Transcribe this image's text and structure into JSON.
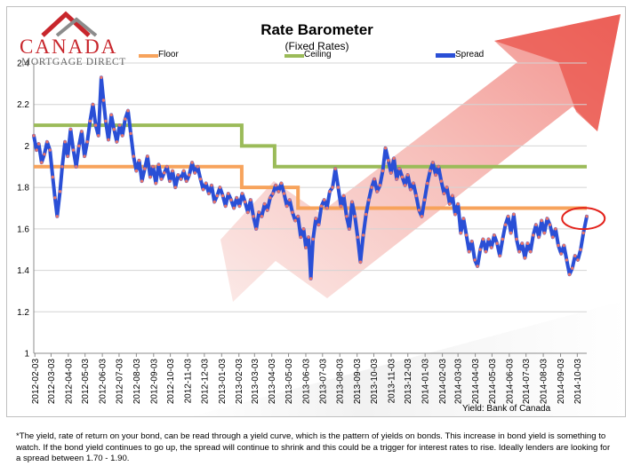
{
  "logo": {
    "brand": "CANADA",
    "subtitle": "MORTGAGE DIRECT",
    "colors": {
      "red": "#c8262c",
      "gray": "#666666"
    }
  },
  "chart_data": {
    "type": "line",
    "title": "Rate Barometer",
    "subtitle": "(Fixed Rates)",
    "ylim": [
      1,
      2.4
    ],
    "y_ticks": [
      "1",
      "1.2",
      "1.4",
      "1.6",
      "1.8",
      "2",
      "2.2",
      "2.4"
    ],
    "x_ticks": [
      "2012-02-03",
      "2012-03-03",
      "2012-04-03",
      "2012-05-03",
      "2012-06-03",
      "2012-07-03",
      "2012-08-03",
      "2012-09-03",
      "2012-10-03",
      "2012-11-03",
      "2012-12-03",
      "2013-01-03",
      "2013-02-03",
      "2013-03-03",
      "2013-04-03",
      "2013-05-03",
      "2013-06-03",
      "2013-07-03",
      "2013-08-03",
      "2013-09-03",
      "2013-10-03",
      "2013-11-03",
      "2013-12-03",
      "2014-01-03",
      "2014-02-03",
      "2014-03-03",
      "2014-04-03",
      "2014-05-03",
      "2014-06-03",
      "2014-07-03",
      "2014-08-03",
      "2014-09-03",
      "2014-10-03"
    ],
    "x_range": [
      "2012-02-01",
      "2014-10-20"
    ],
    "legend_position": "top",
    "grid": "horizontal",
    "series": [
      {
        "name": "Floor",
        "color": "#f7a35c",
        "step": true,
        "points": [
          [
            "2012-02-01",
            1.9
          ],
          [
            "2013-02-08",
            1.9
          ],
          [
            "2013-02-08",
            1.8
          ],
          [
            "2013-05-20",
            1.8
          ],
          [
            "2013-05-20",
            1.7
          ],
          [
            "2014-10-20",
            1.7
          ]
        ]
      },
      {
        "name": "Ceiling",
        "color": "#9bbb59",
        "step": true,
        "points": [
          [
            "2012-02-01",
            2.1
          ],
          [
            "2013-02-08",
            2.1
          ],
          [
            "2013-02-08",
            2.0
          ],
          [
            "2013-04-08",
            2.0
          ],
          [
            "2013-04-08",
            1.9
          ],
          [
            "2014-10-20",
            1.9
          ]
        ]
      },
      {
        "name": "Spread",
        "color": "#2a4fd6",
        "marker_color": "#e8756b",
        "points": [
          [
            "2012-02-01",
            2.05
          ],
          [
            "2012-02-06",
            1.98
          ],
          [
            "2012-02-10",
            2.01
          ],
          [
            "2012-02-15",
            1.92
          ],
          [
            "2012-02-20",
            1.96
          ],
          [
            "2012-02-25",
            2.02
          ],
          [
            "2012-03-01",
            1.98
          ],
          [
            "2012-03-06",
            1.85
          ],
          [
            "2012-03-10",
            1.75
          ],
          [
            "2012-03-14",
            1.66
          ],
          [
            "2012-03-19",
            1.78
          ],
          [
            "2012-03-23",
            1.9
          ],
          [
            "2012-03-28",
            2.02
          ],
          [
            "2012-04-02",
            1.95
          ],
          [
            "2012-04-07",
            2.08
          ],
          [
            "2012-04-12",
            1.98
          ],
          [
            "2012-04-17",
            1.9
          ],
          [
            "2012-04-22",
            2.0
          ],
          [
            "2012-04-27",
            2.07
          ],
          [
            "2012-05-02",
            1.95
          ],
          [
            "2012-05-07",
            2.02
          ],
          [
            "2012-05-12",
            2.12
          ],
          [
            "2012-05-17",
            2.2
          ],
          [
            "2012-05-22",
            2.1
          ],
          [
            "2012-05-27",
            2.05
          ],
          [
            "2012-06-01",
            2.33
          ],
          [
            "2012-06-05",
            2.22
          ],
          [
            "2012-06-09",
            2.12
          ],
          [
            "2012-06-14",
            2.03
          ],
          [
            "2012-06-19",
            2.15
          ],
          [
            "2012-06-24",
            2.08
          ],
          [
            "2012-06-29",
            2.02
          ],
          [
            "2012-07-04",
            2.1
          ],
          [
            "2012-07-09",
            2.05
          ],
          [
            "2012-07-14",
            2.13
          ],
          [
            "2012-07-19",
            2.17
          ],
          [
            "2012-07-24",
            2.06
          ],
          [
            "2012-07-29",
            1.95
          ],
          [
            "2012-08-03",
            1.88
          ],
          [
            "2012-08-08",
            1.93
          ],
          [
            "2012-08-13",
            1.83
          ],
          [
            "2012-08-18",
            1.89
          ],
          [
            "2012-08-23",
            1.95
          ],
          [
            "2012-08-28",
            1.85
          ],
          [
            "2012-09-02",
            1.9
          ],
          [
            "2012-09-07",
            1.82
          ],
          [
            "2012-09-12",
            1.91
          ],
          [
            "2012-09-17",
            1.84
          ],
          [
            "2012-09-22",
            1.87
          ],
          [
            "2012-09-27",
            1.9
          ],
          [
            "2012-10-02",
            1.83
          ],
          [
            "2012-10-07",
            1.88
          ],
          [
            "2012-10-12",
            1.8
          ],
          [
            "2012-10-17",
            1.86
          ],
          [
            "2012-10-22",
            1.84
          ],
          [
            "2012-10-27",
            1.88
          ],
          [
            "2012-11-01",
            1.83
          ],
          [
            "2012-11-06",
            1.86
          ],
          [
            "2012-11-11",
            1.92
          ],
          [
            "2012-11-16",
            1.87
          ],
          [
            "2012-11-21",
            1.9
          ],
          [
            "2012-11-26",
            1.84
          ],
          [
            "2012-12-01",
            1.79
          ],
          [
            "2012-12-06",
            1.82
          ],
          [
            "2012-12-11",
            1.77
          ],
          [
            "2012-12-16",
            1.81
          ],
          [
            "2012-12-21",
            1.73
          ],
          [
            "2012-12-26",
            1.76
          ],
          [
            "2012-12-31",
            1.8
          ],
          [
            "2013-01-05",
            1.76
          ],
          [
            "2013-01-10",
            1.71
          ],
          [
            "2013-01-15",
            1.77
          ],
          [
            "2013-01-20",
            1.74
          ],
          [
            "2013-01-25",
            1.7
          ],
          [
            "2013-01-30",
            1.75
          ],
          [
            "2013-02-04",
            1.71
          ],
          [
            "2013-02-09",
            1.77
          ],
          [
            "2013-02-14",
            1.73
          ],
          [
            "2013-02-19",
            1.68
          ],
          [
            "2013-02-24",
            1.74
          ],
          [
            "2013-03-01",
            1.66
          ],
          [
            "2013-03-06",
            1.6
          ],
          [
            "2013-03-11",
            1.68
          ],
          [
            "2013-03-16",
            1.66
          ],
          [
            "2013-03-21",
            1.72
          ],
          [
            "2013-03-26",
            1.69
          ],
          [
            "2013-03-31",
            1.75
          ],
          [
            "2013-04-05",
            1.77
          ],
          [
            "2013-04-10",
            1.81
          ],
          [
            "2013-04-15",
            1.78
          ],
          [
            "2013-04-20",
            1.82
          ],
          [
            "2013-04-25",
            1.77
          ],
          [
            "2013-04-30",
            1.71
          ],
          [
            "2013-05-05",
            1.74
          ],
          [
            "2013-05-10",
            1.68
          ],
          [
            "2013-05-15",
            1.64
          ],
          [
            "2013-05-20",
            1.66
          ],
          [
            "2013-05-25",
            1.56
          ],
          [
            "2013-05-30",
            1.6
          ],
          [
            "2013-06-03",
            1.51
          ],
          [
            "2013-06-08",
            1.56
          ],
          [
            "2013-06-12",
            1.36
          ],
          [
            "2013-06-16",
            1.55
          ],
          [
            "2013-06-21",
            1.65
          ],
          [
            "2013-06-26",
            1.62
          ],
          [
            "2013-07-01",
            1.71
          ],
          [
            "2013-07-06",
            1.74
          ],
          [
            "2013-07-11",
            1.7
          ],
          [
            "2013-07-16",
            1.78
          ],
          [
            "2013-07-21",
            1.8
          ],
          [
            "2013-07-26",
            1.89
          ],
          [
            "2013-07-31",
            1.8
          ],
          [
            "2013-08-05",
            1.71
          ],
          [
            "2013-08-10",
            1.76
          ],
          [
            "2013-08-15",
            1.66
          ],
          [
            "2013-08-20",
            1.6
          ],
          [
            "2013-08-25",
            1.73
          ],
          [
            "2013-08-30",
            1.66
          ],
          [
            "2013-09-04",
            1.56
          ],
          [
            "2013-09-09",
            1.44
          ],
          [
            "2013-09-14",
            1.57
          ],
          [
            "2013-09-19",
            1.67
          ],
          [
            "2013-09-24",
            1.74
          ],
          [
            "2013-09-29",
            1.8
          ],
          [
            "2013-10-04",
            1.84
          ],
          [
            "2013-10-09",
            1.78
          ],
          [
            "2013-10-14",
            1.81
          ],
          [
            "2013-10-19",
            1.88
          ],
          [
            "2013-10-24",
            1.99
          ],
          [
            "2013-10-29",
            1.93
          ],
          [
            "2013-11-03",
            1.87
          ],
          [
            "2013-11-08",
            1.94
          ],
          [
            "2013-11-13",
            1.84
          ],
          [
            "2013-11-18",
            1.89
          ],
          [
            "2013-11-23",
            1.85
          ],
          [
            "2013-11-28",
            1.81
          ],
          [
            "2013-12-03",
            1.86
          ],
          [
            "2013-12-08",
            1.79
          ],
          [
            "2013-12-13",
            1.82
          ],
          [
            "2013-12-18",
            1.76
          ],
          [
            "2013-12-23",
            1.69
          ],
          [
            "2013-12-28",
            1.66
          ],
          [
            "2014-01-02",
            1.74
          ],
          [
            "2014-01-07",
            1.82
          ],
          [
            "2014-01-12",
            1.88
          ],
          [
            "2014-01-17",
            1.92
          ],
          [
            "2014-01-22",
            1.86
          ],
          [
            "2014-01-27",
            1.9
          ],
          [
            "2014-02-01",
            1.83
          ],
          [
            "2014-02-06",
            1.77
          ],
          [
            "2014-02-11",
            1.8
          ],
          [
            "2014-02-16",
            1.72
          ],
          [
            "2014-02-21",
            1.76
          ],
          [
            "2014-02-26",
            1.67
          ],
          [
            "2014-03-03",
            1.72
          ],
          [
            "2014-03-08",
            1.58
          ],
          [
            "2014-03-13",
            1.65
          ],
          [
            "2014-03-18",
            1.57
          ],
          [
            "2014-03-23",
            1.49
          ],
          [
            "2014-03-28",
            1.54
          ],
          [
            "2014-04-02",
            1.45
          ],
          [
            "2014-04-07",
            1.42
          ],
          [
            "2014-04-12",
            1.5
          ],
          [
            "2014-04-17",
            1.55
          ],
          [
            "2014-04-22",
            1.49
          ],
          [
            "2014-04-27",
            1.55
          ],
          [
            "2014-05-02",
            1.51
          ],
          [
            "2014-05-07",
            1.57
          ],
          [
            "2014-05-12",
            1.53
          ],
          [
            "2014-05-17",
            1.47
          ],
          [
            "2014-05-22",
            1.55
          ],
          [
            "2014-05-27",
            1.62
          ],
          [
            "2014-06-01",
            1.66
          ],
          [
            "2014-06-06",
            1.58
          ],
          [
            "2014-06-11",
            1.67
          ],
          [
            "2014-06-16",
            1.55
          ],
          [
            "2014-06-21",
            1.49
          ],
          [
            "2014-06-26",
            1.53
          ],
          [
            "2014-07-01",
            1.46
          ],
          [
            "2014-07-06",
            1.53
          ],
          [
            "2014-07-11",
            1.49
          ],
          [
            "2014-07-16",
            1.57
          ],
          [
            "2014-07-21",
            1.62
          ],
          [
            "2014-07-26",
            1.56
          ],
          [
            "2014-07-31",
            1.64
          ],
          [
            "2014-08-05",
            1.58
          ],
          [
            "2014-08-10",
            1.65
          ],
          [
            "2014-08-15",
            1.62
          ],
          [
            "2014-08-20",
            1.56
          ],
          [
            "2014-08-25",
            1.6
          ],
          [
            "2014-08-30",
            1.52
          ],
          [
            "2014-09-04",
            1.48
          ],
          [
            "2014-09-09",
            1.52
          ],
          [
            "2014-09-14",
            1.45
          ],
          [
            "2014-09-19",
            1.38
          ],
          [
            "2014-09-24",
            1.41
          ],
          [
            "2014-09-29",
            1.47
          ],
          [
            "2014-10-04",
            1.45
          ],
          [
            "2014-10-09",
            1.5
          ],
          [
            "2014-10-14",
            1.58
          ],
          [
            "2014-10-20",
            1.66
          ]
        ]
      }
    ],
    "highlight": {
      "shape": "ellipse",
      "color": "#e3221b",
      "center": [
        "2014-10-14",
        1.65
      ]
    },
    "source_note": "Yield: Bank of Canada"
  },
  "background": {
    "arrow_color": "#e8362c"
  },
  "footnote": "*The yield, rate of return on your bond, can be read through a yield curve, which is the pattern of yields on bonds. This increase in bond yield  is something to watch.  If the bond yield continues to go up, the spread will continue to shrink and this could be a trigger for interest rates to rise. Ideally lenders are looking for a spread between 1.70 - 1.90."
}
